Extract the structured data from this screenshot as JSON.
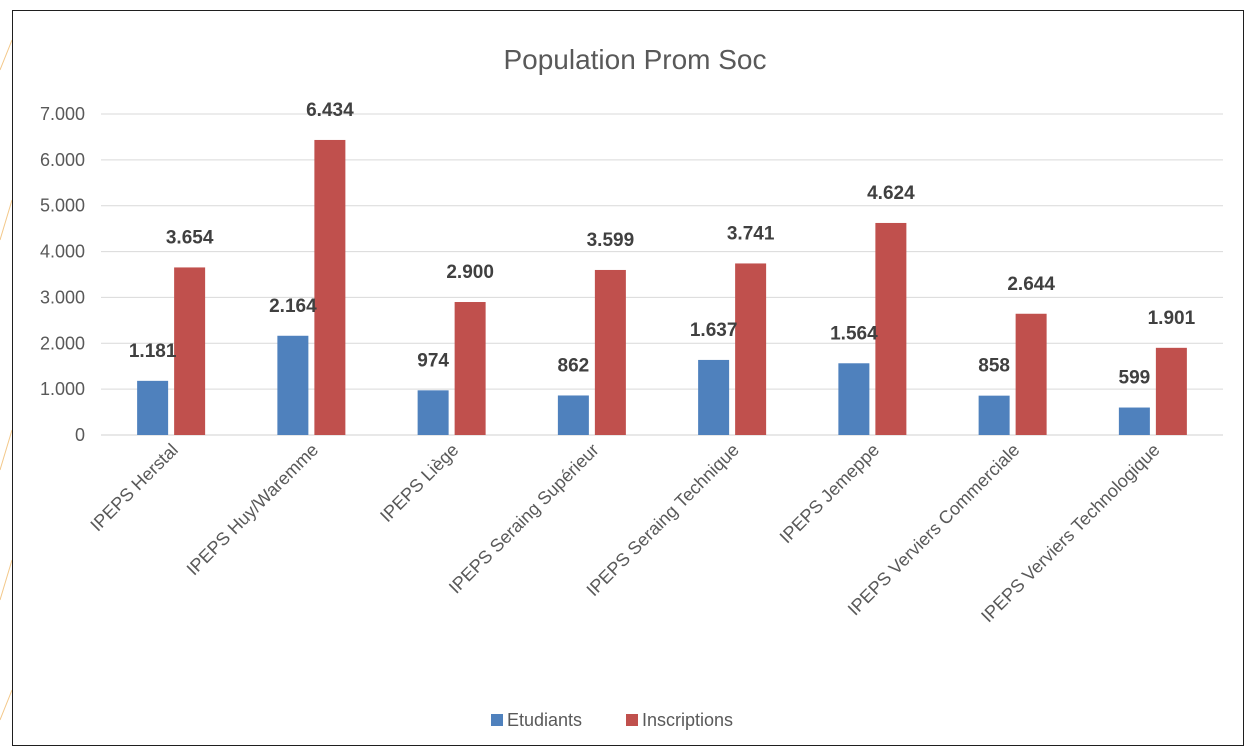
{
  "chart_data": {
    "type": "bar",
    "title": "Population Prom Soc",
    "categories": [
      "IPEPS Herstal",
      "IPEPS Huy/Waremme",
      "IPEPS Liège",
      "IPEPS Seraing Supérieur",
      "IPEPS Seraing Technique",
      "IPEPS Jemeppe",
      "IPEPS Verviers Commerciale",
      "IPEPS Verviers Technologique"
    ],
    "series": [
      {
        "name": "Etudiants",
        "color": "#4f81bd",
        "values": [
          1181,
          2164,
          974,
          862,
          1637,
          1564,
          858,
          599
        ],
        "labels": [
          "1.181",
          "2.164",
          "974",
          "862",
          "1.637",
          "1.564",
          "858",
          "599"
        ]
      },
      {
        "name": "Inscriptions",
        "color": "#c0504d",
        "values": [
          3654,
          6434,
          2900,
          3599,
          3741,
          4624,
          2644,
          1901
        ],
        "labels": [
          "3.654",
          "6.434",
          "2.900",
          "3.599",
          "3.741",
          "4.624",
          "2.644",
          "1.901"
        ]
      }
    ],
    "ylim": [
      0,
      7000
    ],
    "yticks": [
      0,
      1000,
      2000,
      3000,
      4000,
      5000,
      6000,
      7000
    ],
    "ytick_labels": [
      "0",
      "1.000",
      "2.000",
      "3.000",
      "4.000",
      "5.000",
      "6.000",
      "7.000"
    ],
    "grid": true,
    "legend_position": "bottom"
  }
}
